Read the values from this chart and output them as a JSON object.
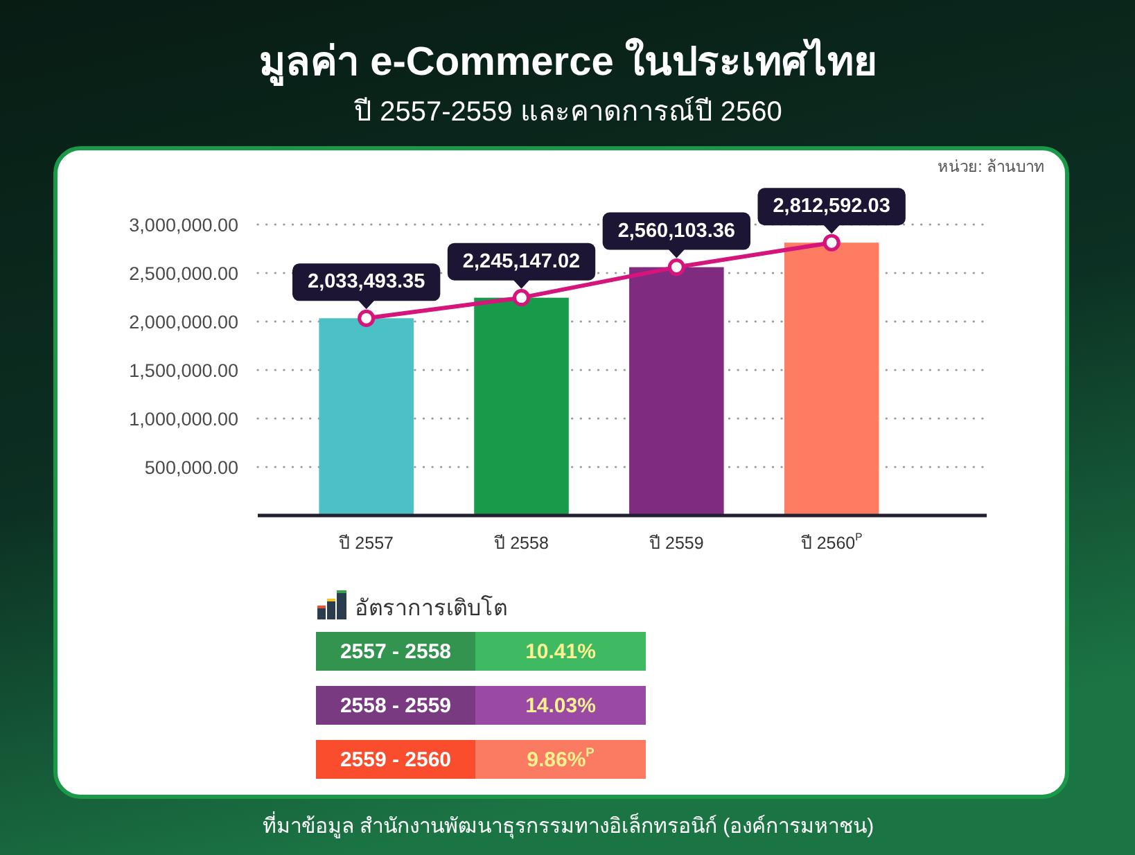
{
  "chart_data": [
    {
      "type": "bar",
      "title": "มูลค่า e-Commerce ในประเทศไทย",
      "subtitle": "ปี 2557-2559 และคาดการณ์ปี 2560",
      "categories": [
        "ปี 2557",
        "ปี 2558",
        "ปี 2559",
        "ปี 2560$^{P}$"
      ],
      "series": [
        {
          "type": "bar",
          "colors": [
            "#4bc1c6",
            "#179a49",
            "#7f2b80",
            "#fe7c61"
          ],
          "values": [
            2033493.35,
            2245147.02,
            2560103.36,
            2812592.03
          ]
        },
        {
          "type": "line",
          "color": "#d6157c",
          "values": [
            2033493.35,
            2245147.02,
            2560103.36,
            2812592.03
          ],
          "value_labels": [
            "2,033,493.35",
            "2,245,147.02",
            "2,560,103.36",
            "2,812,592.03"
          ]
        }
      ],
      "marker": "circle",
      "ylim": [
        0,
        3000000
      ],
      "yticks": [
        {
          "value": 500000,
          "label": "500,000.00"
        },
        {
          "value": 1000000,
          "label": "1,000,000.00"
        },
        {
          "value": 1500000,
          "label": "1,500,000.00"
        },
        {
          "value": 2000000,
          "label": "2,000,000.00"
        },
        {
          "value": 2500000,
          "label": "2,500,000.00"
        },
        {
          "value": 3000000,
          "label": "3,000,000.00"
        }
      ],
      "grid": "y",
      "annotations": [
        "หน่วย: ล้านบาท",
        "ที่มาข้อมูล สำนักงานพัฒนาธุรกรรมทางอิเล็กทรอนิก์ (องค์การมหาชน)"
      ]
    },
    {
      "type": "other",
      "title": "อัตราการเติบโต",
      "categories": [
        "2557 - 2558",
        "2558 - 2559",
        "2559 - 2560"
      ],
      "value_labels": [
        "10.41%",
        "14.03%",
        "9.86%$^{P}$"
      ],
      "colors": [
        "#3fba63",
        "#9a4aa5",
        "#fb7a62"
      ]
    }
  ]
}
